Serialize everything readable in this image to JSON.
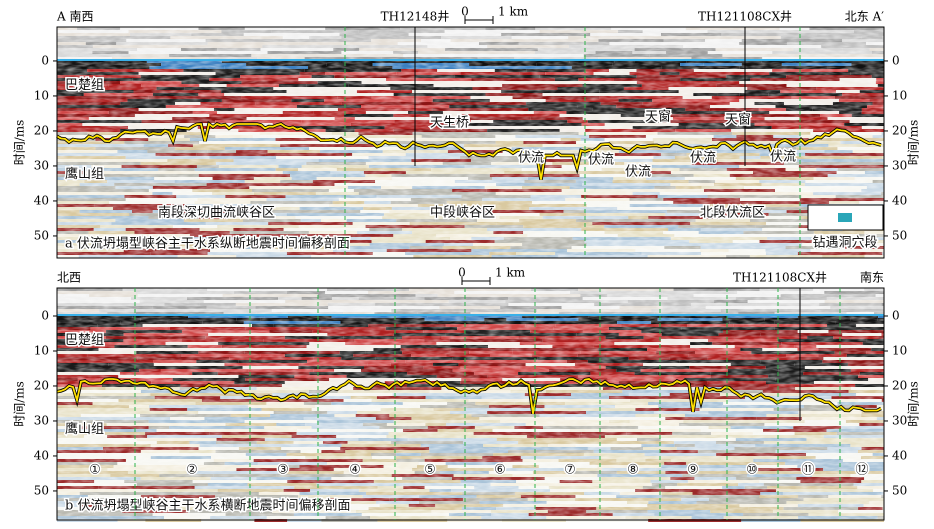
{
  "panels": [
    {
      "left_title": "A 南西",
      "right_title": "北东 A′",
      "wells": [
        "TH12148井",
        "TH121108CX井"
      ],
      "scale": [
        "0",
        "1 km"
      ],
      "axis_label": "时间/ms",
      "ylim": [
        -9.7,
        56.3
      ],
      "yticks": [
        0,
        10,
        20,
        30,
        40,
        50
      ],
      "formations": [
        "巴楚组",
        "鹰山组"
      ],
      "features": [
        "天生桥",
        "伏流",
        "伏流",
        "伏流",
        "伏流",
        "伏流",
        "天窗",
        "天窗"
      ],
      "zones": [
        "南段深切曲流峡谷区",
        "中段峡谷区",
        "北段伏流区"
      ],
      "legend": "钻遇洞穴段",
      "caption": "a 伏流坍塌型峡谷主干水系纵断地震时间偏移剖面"
    },
    {
      "left_title": "北西",
      "right_title": "南东",
      "wells": [
        "TH121108CX井"
      ],
      "scale": [
        "0",
        "1 km"
      ],
      "axis_label": "时间/ms",
      "ylim": [
        -8,
        58.3
      ],
      "yticks": [
        0,
        10,
        20,
        30,
        40,
        50
      ],
      "formations": [
        "巴楚组",
        "鹰山组"
      ],
      "sections": [
        "①",
        "②",
        "③",
        "④",
        "⑤",
        "⑥",
        "⑦",
        "⑧",
        "⑨",
        "⑩",
        "⑪",
        "⑫"
      ],
      "caption": "b 伏流坍塌型峡谷主干水系横断地震时间偏移剖面"
    }
  ]
}
